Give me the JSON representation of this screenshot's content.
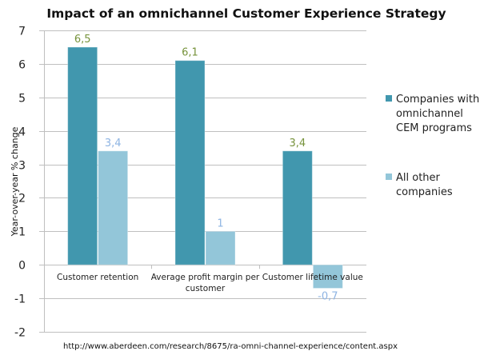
{
  "chart_data": {
    "type": "bar",
    "title": "Impact of an omnichannel Customer Experience Strategy",
    "xlabel": "",
    "ylabel": "Year-over-year % change",
    "ylim": [
      -2,
      7
    ],
    "yticks": [
      7,
      6,
      5,
      4,
      3,
      2,
      1,
      0,
      -1,
      -2
    ],
    "ytick_labels": [
      "7",
      "6",
      "5",
      "4",
      "3",
      "2",
      "1",
      "0",
      "-1",
      "-2"
    ],
    "grid": true,
    "categories": [
      [
        "Customer retention"
      ],
      [
        "Average profit margin per",
        "customer"
      ],
      [
        "Customer lifetime value"
      ]
    ],
    "series": [
      {
        "name": "Companies with omnichannel CEM programs",
        "legend_lines": [
          "Companies with",
          "omnichannel",
          "CEM programs"
        ],
        "color": "#4197AE",
        "label_color": "#77933C",
        "values": [
          6.5,
          6.1,
          3.4
        ],
        "labels": [
          "6,5",
          "6,1",
          "3,4"
        ]
      },
      {
        "name": "All other companies",
        "legend_lines": [
          "All other",
          "companies"
        ],
        "color": "#93C6D9",
        "label_color": "#8EB4E3",
        "values": [
          3.4,
          1,
          -0.7
        ],
        "labels": [
          "3,4",
          "1",
          "-0,7"
        ]
      }
    ],
    "legend_position": "right",
    "source_note": "http://www.aberdeen.com/research/8675/ra-omni-channel-experience/content.aspx"
  }
}
